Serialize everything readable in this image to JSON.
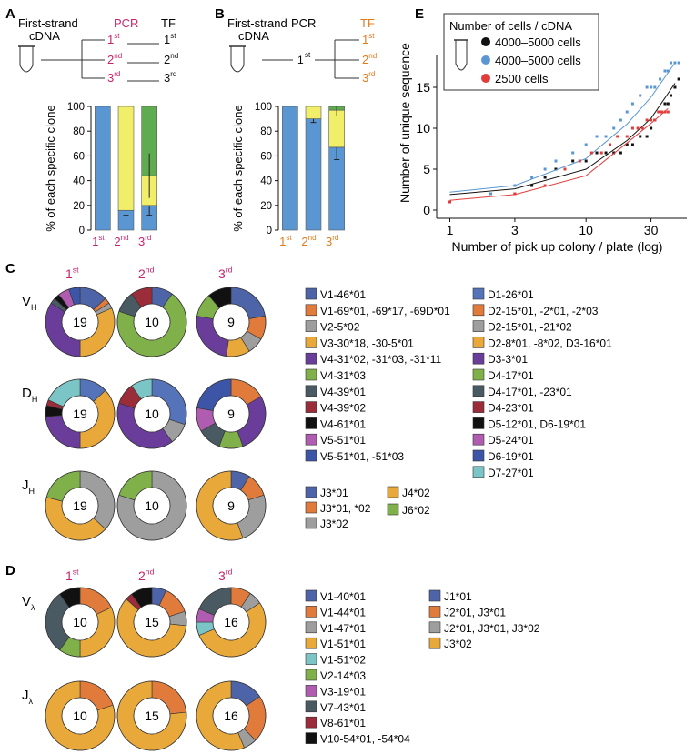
{
  "colors": {
    "pink": "#c8256e",
    "orange": "#e07b1c",
    "blue": "#5a97d2",
    "yellow": "#f1ee6a",
    "green": "#5fab4f",
    "black": "#111111",
    "red": "#e23b3b",
    "gray": "#999999"
  },
  "panel_letters": {
    "A": "A",
    "B": "B",
    "C": "C",
    "D": "D",
    "E": "E"
  },
  "panel_A": {
    "cdna_line1": "First-strand",
    "cdna_line2": "cDNA",
    "pcr": "PCR",
    "tf": "TF",
    "sup": "st",
    "rounds": [
      {
        "n": "1",
        "s": "st"
      },
      {
        "n": "2",
        "s": "nd"
      },
      {
        "n": "3",
        "s": "rd"
      }
    ]
  },
  "panel_B": {
    "cdna_line1": "First-strand",
    "cdna_line2": "cDNA",
    "pcr": "PCR",
    "tf": "TF",
    "pcr_round": "1",
    "pcr_round_sup": "st",
    "rounds": [
      {
        "n": "1",
        "s": "st"
      },
      {
        "n": "2",
        "s": "nd"
      },
      {
        "n": "3",
        "s": "rd"
      }
    ]
  },
  "panel_C": {
    "round_labels": [
      {
        "n": "1",
        "s": "st"
      },
      {
        "n": "2",
        "s": "nd"
      },
      {
        "n": "3",
        "s": "rd"
      }
    ],
    "row_labels": [
      {
        "main": "V",
        "sub": "H"
      },
      {
        "main": "D",
        "sub": "H"
      },
      {
        "main": "J",
        "sub": "H"
      }
    ],
    "legend_v_col1": [
      "V1-46*01",
      "V1-69*01, -69*17, -69D*01",
      "V2-5*02",
      "V3-30*18, -30-5*01",
      "V4-31*02, -31*03, -31*11",
      "V4-31*03",
      "V4-39*01",
      "V4-39*02",
      "V4-61*01",
      "V5-51*01",
      "V5-51*01, -51*03"
    ],
    "legend_d": [
      "D1-26*01",
      "D2-15*01, -2*01, -2*03",
      "D2-15*01, -21*02",
      "D2-8*01, -8*02, D3-16*01",
      "D3-3*01",
      "D4-17*01",
      "D4-17*01, -23*01",
      "D4-23*01",
      "D5-12*01, D6-19*01",
      "D5-24*01",
      "D6-19*01",
      "D7-27*01"
    ],
    "legend_j": [
      "J3*01",
      "J3*01, *02",
      "J3*02",
      "J4*02",
      "J6*02"
    ]
  },
  "panel_D": {
    "round_labels": [
      {
        "n": "1",
        "s": "st"
      },
      {
        "n": "2",
        "s": "nd"
      },
      {
        "n": "3",
        "s": "rd"
      }
    ],
    "row_labels": [
      {
        "main": "V",
        "sub": "λ"
      },
      {
        "main": "J",
        "sub": "λ"
      }
    ],
    "legend_v": [
      "V1-40*01",
      "V1-44*01",
      "V1-47*01",
      "V1-51*01",
      "V1-51*02",
      "V2-14*03",
      "V3-19*01",
      "V7-43*01",
      "V8-61*01",
      "V10-54*01, -54*04"
    ],
    "legend_j": [
      "J1*01",
      "J2*01, J3*01",
      "J2*01, J3*01, J3*02",
      "J3*02"
    ]
  },
  "chart_data": [
    {
      "id": "A",
      "type": "bar",
      "stacked": true,
      "ylabel": "% of each specific clone",
      "ylim": [
        0,
        100
      ],
      "yticks": [
        0,
        20,
        40,
        60,
        80,
        100
      ],
      "categories": [
        "1st",
        "2nd",
        "3rd"
      ],
      "series": [
        {
          "name": "clone 1",
          "color": "#5a97d2",
          "values": [
            100,
            16,
            20
          ],
          "errors": [
            0,
            4,
            8
          ]
        },
        {
          "name": "clone 2",
          "color": "#f1ee6a",
          "values": [
            0,
            84,
            24
          ],
          "errors": [
            0,
            0,
            0
          ]
        },
        {
          "name": "clone 3",
          "color": "#5fab4f",
          "values": [
            0,
            0,
            56
          ],
          "errors": [
            0,
            0,
            0
          ]
        }
      ],
      "total_error": [
        0,
        0,
        18
      ]
    },
    {
      "id": "B",
      "type": "bar",
      "stacked": true,
      "ylabel": "% of each specific clone",
      "ylim": [
        0,
        100
      ],
      "yticks": [
        0,
        20,
        40,
        60,
        80,
        100
      ],
      "categories": [
        "1st",
        "2nd",
        "3rd"
      ],
      "series": [
        {
          "name": "clone 1",
          "color": "#5a97d2",
          "values": [
            100,
            90,
            67
          ],
          "errors": [
            0,
            3,
            10
          ]
        },
        {
          "name": "clone 2",
          "color": "#f1ee6a",
          "values": [
            0,
            10,
            30
          ],
          "errors": [
            0,
            0,
            0
          ]
        },
        {
          "name": "clone 3",
          "color": "#5fab4f",
          "values": [
            0,
            0,
            3
          ],
          "errors": [
            0,
            0,
            0
          ]
        }
      ],
      "total_error": [
        0,
        0,
        5
      ]
    },
    {
      "id": "E",
      "type": "scatter",
      "xlabel": "Number of pick up colony / plate (log)",
      "ylabel": "Number of unique sequence",
      "xscale": "log",
      "xlim": [
        0.8,
        55
      ],
      "ylim": [
        -1,
        19
      ],
      "xticks": [
        1,
        3,
        10,
        30
      ],
      "yticks": [
        0,
        5,
        10,
        15
      ],
      "legend_title": "Number of cells / cDNA",
      "legend_position": "top-left",
      "series": [
        {
          "name": "4000–5000 cells",
          "color": "#111111",
          "points": [
            [
              1,
              1
            ],
            [
              2,
              2
            ],
            [
              3,
              2
            ],
            [
              4,
              3
            ],
            [
              5,
              4
            ],
            [
              6,
              5
            ],
            [
              8,
              6
            ],
            [
              10,
              6
            ],
            [
              12,
              7
            ],
            [
              14,
              7
            ],
            [
              16,
              7
            ],
            [
              18,
              7
            ],
            [
              20,
              8
            ],
            [
              22,
              8
            ],
            [
              25,
              9
            ],
            [
              28,
              9
            ],
            [
              30,
              10
            ],
            [
              32,
              11
            ],
            [
              35,
              12
            ],
            [
              38,
              13
            ],
            [
              40,
              13
            ],
            [
              42,
              14
            ],
            [
              45,
              15
            ],
            [
              48,
              16
            ]
          ],
          "fit": [
            [
              1,
              1.9
            ],
            [
              3,
              2.6
            ],
            [
              10,
              5.0
            ],
            [
              20,
              8.5
            ],
            [
              30,
              11.2
            ],
            [
              45,
              15.5
            ]
          ]
        },
        {
          "name": "4000–5000 cells",
          "color": "#5a97d2",
          "points": [
            [
              1,
              1
            ],
            [
              2,
              2
            ],
            [
              3,
              3
            ],
            [
              4,
              4
            ],
            [
              5,
              5
            ],
            [
              6,
              6
            ],
            [
              8,
              7
            ],
            [
              10,
              8
            ],
            [
              12,
              9
            ],
            [
              14,
              9
            ],
            [
              16,
              10
            ],
            [
              18,
              11
            ],
            [
              20,
              12
            ],
            [
              22,
              13
            ],
            [
              25,
              14
            ],
            [
              28,
              15
            ],
            [
              30,
              15
            ],
            [
              32,
              15
            ],
            [
              35,
              16
            ],
            [
              38,
              17
            ],
            [
              40,
              17
            ],
            [
              42,
              18
            ],
            [
              45,
              18
            ],
            [
              48,
              18
            ]
          ],
          "fit": [
            [
              1,
              2.2
            ],
            [
              3,
              3.0
            ],
            [
              10,
              6.3
            ],
            [
              20,
              10.5
            ],
            [
              30,
              13.8
            ],
            [
              45,
              18.0
            ]
          ]
        },
        {
          "name": "2500 cells",
          "color": "#e23b3b",
          "points": [
            [
              1,
              1
            ],
            [
              3,
              2
            ],
            [
              5,
              3
            ],
            [
              7,
              5
            ],
            [
              9,
              6
            ],
            [
              11,
              7
            ],
            [
              13,
              7
            ],
            [
              15,
              8
            ],
            [
              17,
              9
            ],
            [
              20,
              9
            ],
            [
              22,
              10
            ],
            [
              24,
              10
            ],
            [
              26,
              10
            ],
            [
              28,
              11
            ],
            [
              30,
              11
            ],
            [
              32,
              11
            ],
            [
              34,
              12
            ],
            [
              36,
              12
            ],
            [
              38,
              12
            ],
            [
              40,
              12
            ]
          ],
          "fit": [
            [
              1,
              1.2
            ],
            [
              3,
              1.9
            ],
            [
              10,
              4.2
            ],
            [
              20,
              8.2
            ],
            [
              30,
              10.6
            ],
            [
              40,
              12.4
            ]
          ]
        }
      ]
    },
    {
      "id": "C-VH",
      "type": "pie",
      "donut": true,
      "totals": [
        19,
        10,
        9
      ],
      "slices": [
        [
          {
            "c": "#4e64a8",
            "v": 2.5
          },
          {
            "c": "#e07b3c",
            "v": 0.5
          },
          {
            "c": "#9e9e9e",
            "v": 0.5
          },
          {
            "c": "#e8a83a",
            "v": 6
          },
          {
            "c": "#6a3d9a",
            "v": 6.5
          },
          {
            "c": "#7fb04a",
            "v": 0
          },
          {
            "c": "#4a5a63",
            "v": 0.5
          },
          {
            "c": "#9b2c3a",
            "v": 0
          },
          {
            "c": "#111111",
            "v": 0.5
          },
          {
            "c": "#b05cb0",
            "v": 1
          },
          {
            "c": "#3d55a6",
            "v": 1
          }
        ],
        [
          {
            "c": "#4e64a8",
            "v": 1
          },
          {
            "c": "#e07b3c",
            "v": 0
          },
          {
            "c": "#9e9e9e",
            "v": 0
          },
          {
            "c": "#e8a83a",
            "v": 0
          },
          {
            "c": "#6a3d9a",
            "v": 0
          },
          {
            "c": "#7fb04a",
            "v": 7
          },
          {
            "c": "#4a5a63",
            "v": 1
          },
          {
            "c": "#9b2c3a",
            "v": 1
          },
          {
            "c": "#111111",
            "v": 0
          },
          {
            "c": "#b05cb0",
            "v": 0
          },
          {
            "c": "#3d55a6",
            "v": 0
          }
        ],
        [
          {
            "c": "#4e64a8",
            "v": 2
          },
          {
            "c": "#e07b3c",
            "v": 1
          },
          {
            "c": "#9e9e9e",
            "v": 0.7
          },
          {
            "c": "#e8a83a",
            "v": 1
          },
          {
            "c": "#6a3d9a",
            "v": 2.3
          },
          {
            "c": "#7fb04a",
            "v": 1
          },
          {
            "c": "#4a5a63",
            "v": 0
          },
          {
            "c": "#9b2c3a",
            "v": 0
          },
          {
            "c": "#111111",
            "v": 1
          },
          {
            "c": "#b05cb0",
            "v": 0
          },
          {
            "c": "#3d55a6",
            "v": 0
          }
        ]
      ]
    },
    {
      "id": "C-DH",
      "type": "pie",
      "donut": true,
      "totals": [
        19,
        10,
        9
      ],
      "slices": [
        [
          {
            "c": "#5473b8",
            "v": 2.5
          },
          {
            "c": "#e8a83a",
            "v": 7
          },
          {
            "c": "#6a3d9a",
            "v": 4.5
          },
          {
            "c": "#111111",
            "v": 1
          },
          {
            "c": "#9b2c3a",
            "v": 0.5
          },
          {
            "c": "#7cc5c7",
            "v": 3.5
          }
        ],
        [
          {
            "c": "#5473b8",
            "v": 3
          },
          {
            "c": "#9e9e9e",
            "v": 1
          },
          {
            "c": "#6a3d9a",
            "v": 4
          },
          {
            "c": "#9b2c3a",
            "v": 1
          },
          {
            "c": "#7cc5c7",
            "v": 1
          }
        ],
        [
          {
            "c": "#e07b3c",
            "v": 1.5
          },
          {
            "c": "#6a3d9a",
            "v": 2.5
          },
          {
            "c": "#7fb04a",
            "v": 1
          },
          {
            "c": "#4a5a63",
            "v": 1
          },
          {
            "c": "#b05cb0",
            "v": 1
          },
          {
            "c": "#3d55a6",
            "v": 2
          }
        ]
      ]
    },
    {
      "id": "C-JH",
      "type": "pie",
      "donut": true,
      "totals": [
        19,
        10,
        9
      ],
      "slices": [
        [
          {
            "c": "#9e9e9e",
            "v": 7
          },
          {
            "c": "#e8a83a",
            "v": 8
          },
          {
            "c": "#7fb04a",
            "v": 4
          }
        ],
        [
          {
            "c": "#9e9e9e",
            "v": 8
          },
          {
            "c": "#7fb04a",
            "v": 2
          }
        ],
        [
          {
            "c": "#4e64a8",
            "v": 0.8
          },
          {
            "c": "#e07b3c",
            "v": 1
          },
          {
            "c": "#9e9e9e",
            "v": 2.2
          },
          {
            "c": "#e8a83a",
            "v": 5
          }
        ]
      ]
    },
    {
      "id": "D-Vλ",
      "type": "pie",
      "donut": true,
      "totals": [
        10,
        15,
        16
      ],
      "slices": [
        [
          {
            "c": "#e07b3c",
            "v": 1.8
          },
          {
            "c": "#e8a83a",
            "v": 3.2
          },
          {
            "c": "#7fb04a",
            "v": 1
          },
          {
            "c": "#4a5a63",
            "v": 3
          },
          {
            "c": "#111111",
            "v": 1
          }
        ],
        [
          {
            "c": "#4e64a8",
            "v": 1
          },
          {
            "c": "#e07b3c",
            "v": 2
          },
          {
            "c": "#9e9e9e",
            "v": 1
          },
          {
            "c": "#e8a83a",
            "v": 9
          },
          {
            "c": "#9b2c3a",
            "v": 0.5
          },
          {
            "c": "#111111",
            "v": 1.5
          }
        ],
        [
          {
            "c": "#e07b3c",
            "v": 1.5
          },
          {
            "c": "#9e9e9e",
            "v": 1
          },
          {
            "c": "#e8a83a",
            "v": 8.5
          },
          {
            "c": "#7cc5c7",
            "v": 1
          },
          {
            "c": "#b05cb0",
            "v": 1
          },
          {
            "c": "#4a5a63",
            "v": 3
          }
        ]
      ]
    },
    {
      "id": "D-Jλ",
      "type": "pie",
      "donut": true,
      "totals": [
        10,
        15,
        16
      ],
      "slices": [
        [
          {
            "c": "#e07b3c",
            "v": 2
          },
          {
            "c": "#e8a83a",
            "v": 8
          }
        ],
        [
          {
            "c": "#e07b3c",
            "v": 3.5
          },
          {
            "c": "#e8a83a",
            "v": 11.5
          }
        ],
        [
          {
            "c": "#4e64a8",
            "v": 2.5
          },
          {
            "c": "#e07b3c",
            "v": 3.5
          },
          {
            "c": "#9e9e9e",
            "v": 1
          },
          {
            "c": "#e8a83a",
            "v": 9
          }
        ]
      ]
    }
  ],
  "legend_colors": {
    "c_v": [
      "#4e64a8",
      "#e07b3c",
      "#9e9e9e",
      "#e8a83a",
      "#6a3d9a",
      "#7fb04a",
      "#4a5a63",
      "#9b2c3a",
      "#111111",
      "#b05cb0",
      "#3d55a6"
    ],
    "c_d": [
      "#5473b8",
      "#e07b3c",
      "#9e9e9e",
      "#e8a83a",
      "#6a3d9a",
      "#7fb04a",
      "#4a5a63",
      "#9b2c3a",
      "#111111",
      "#b05cb0",
      "#3d55a6",
      "#7cc5c7"
    ],
    "c_j": [
      "#4e64a8",
      "#e07b3c",
      "#9e9e9e",
      "#e8a83a",
      "#7fb04a"
    ],
    "d_v": [
      "#4e64a8",
      "#e07b3c",
      "#9e9e9e",
      "#e8a83a",
      "#7cc5c7",
      "#7fb04a",
      "#b05cb0",
      "#4a5a63",
      "#9b2c3a",
      "#111111"
    ],
    "d_j": [
      "#4e64a8",
      "#e07b3c",
      "#9e9e9e",
      "#e8a83a"
    ]
  }
}
